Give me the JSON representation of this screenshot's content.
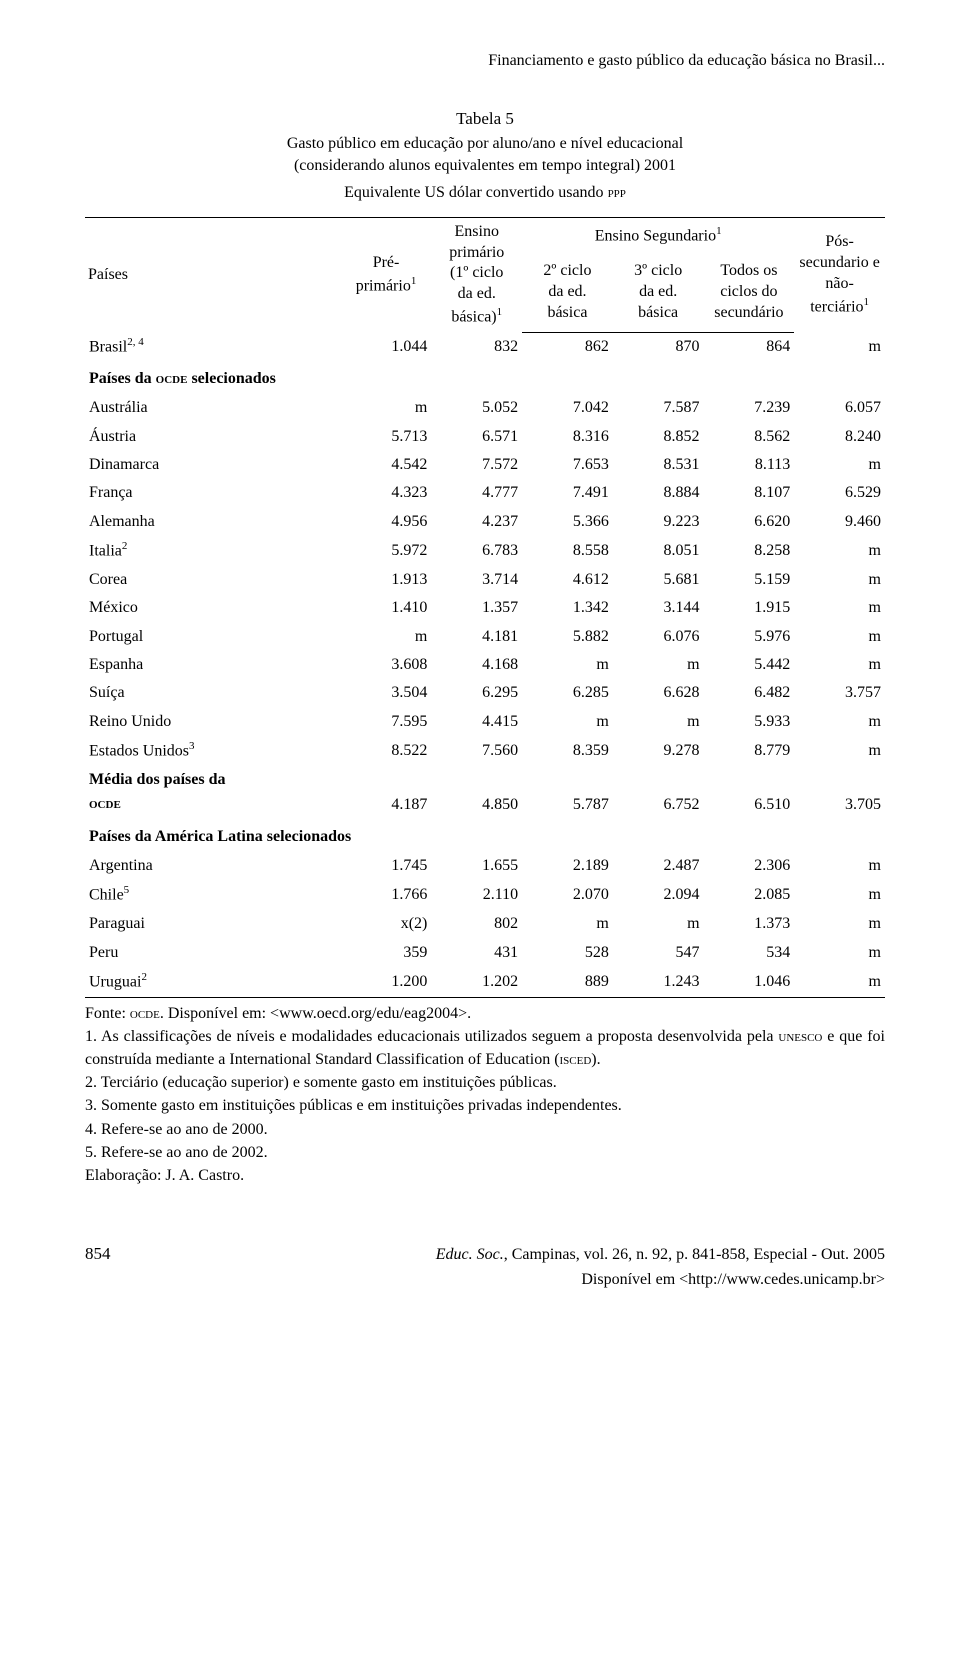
{
  "header": "Financiamento e gasto público da educação básica no Brasil...",
  "table": {
    "number": "Tabela 5",
    "title_line_1": "Gasto público em educação por aluno/ano e nível educacional",
    "title_line_2": "(considerando alunos equivalentes em tempo integral) 2001",
    "ppp_note": "Equivalente US dólar convertido usando PPP",
    "columns": {
      "c1": "Países",
      "c2": "Pré-primário¹",
      "c3": "Ensino primário (1º ciclo da ed. básica)¹",
      "group_header": "Ensino Segundario¹",
      "c4": "2º ciclo da ed. básica",
      "c5": "3º ciclo da ed. básica",
      "c6": "Todos os ciclos do secundário",
      "c7": "Pós-secundario e não-terciário¹"
    },
    "sections": [
      {
        "rows": [
          {
            "name": "Brasil",
            "sup": "2, 4",
            "values": [
              "1.044",
              "832",
              "862",
              "870",
              "864",
              "m"
            ]
          }
        ]
      },
      {
        "title": "Países da OCDE selecionados",
        "rows": [
          {
            "name": "Austrália",
            "values": [
              "m",
              "5.052",
              "7.042",
              "7.587",
              "7.239",
              "6.057"
            ]
          },
          {
            "name": "Áustria",
            "values": [
              "5.713",
              "6.571",
              "8.316",
              "8.852",
              "8.562",
              "8.240"
            ]
          },
          {
            "name": "Dinamarca",
            "values": [
              "4.542",
              "7.572",
              "7.653",
              "8.531",
              "8.113",
              "m"
            ]
          },
          {
            "name": "França",
            "values": [
              "4.323",
              "4.777",
              "7.491",
              "8.884",
              "8.107",
              "6.529"
            ]
          },
          {
            "name": "Alemanha",
            "values": [
              "4.956",
              "4.237",
              "5.366",
              "9.223",
              "6.620",
              "9.460"
            ]
          },
          {
            "name": "Italia",
            "sup": "2",
            "values": [
              "5.972",
              "6.783",
              "8.558",
              "8.051",
              "8.258",
              "m"
            ]
          },
          {
            "name": "Corea",
            "values": [
              "1.913",
              "3.714",
              "4.612",
              "5.681",
              "5.159",
              "m"
            ]
          },
          {
            "name": "México",
            "values": [
              "1.410",
              "1.357",
              "1.342",
              "3.144",
              "1.915",
              "m"
            ]
          },
          {
            "name": "Portugal",
            "values": [
              "m",
              "4.181",
              "5.882",
              "6.076",
              "5.976",
              "m"
            ]
          },
          {
            "name": "Espanha",
            "values": [
              "3.608",
              "4.168",
              "m",
              "m",
              "5.442",
              "m"
            ]
          },
          {
            "name": "Suíça",
            "values": [
              "3.504",
              "6.295",
              "6.285",
              "6.628",
              "6.482",
              "3.757"
            ]
          },
          {
            "name": "Reino Unido",
            "values": [
              "7.595",
              "4.415",
              "m",
              "m",
              "5.933",
              "m"
            ]
          },
          {
            "name": "Estados Unidos",
            "sup": "3",
            "values": [
              "8.522",
              "7.560",
              "8.359",
              "9.278",
              "8.779",
              "m"
            ]
          },
          {
            "name": "Média dos países da OCDE",
            "multiline": true,
            "name_top": "Média dos países da",
            "name_bottom": "OCDE",
            "values": [
              "4.187",
              "4.850",
              "5.787",
              "6.752",
              "6.510",
              "3.705"
            ]
          }
        ]
      },
      {
        "title": "Países da América Latina selecionados",
        "rows": [
          {
            "name": "Argentina",
            "values": [
              "1.745",
              "1.655",
              "2.189",
              "2.487",
              "2.306",
              "m"
            ]
          },
          {
            "name": "Chile",
            "sup": "5",
            "values": [
              "1.766",
              "2.110",
              "2.070",
              "2.094",
              "2.085",
              "m"
            ]
          },
          {
            "name": "Paraguai",
            "values": [
              "x(2)",
              "802",
              "m",
              "m",
              "1.373",
              "m"
            ]
          },
          {
            "name": "Peru",
            "values": [
              "359",
              "431",
              "528",
              "547",
              "534",
              "m"
            ]
          },
          {
            "name": "Uruguai",
            "sup": "2",
            "values": [
              "1.200",
              "1.202",
              "889",
              "1.243",
              "1.046",
              "m"
            ]
          }
        ]
      }
    ]
  },
  "notes": {
    "fonte": "Fonte: OCDE. Disponível em: <www.oecd.org/edu/eag2004>.",
    "n1": "1. As classificações de níveis e modalidades educacionais utilizados seguem a proposta desenvolvida pela UNESCO e que foi construída mediante a International Standard Classification of Education (ISCED).",
    "n2": "2. Terciário (educação superior) e somente gasto em instituições públicas.",
    "n3": "3. Somente gasto em instituições públicas e em instituições privadas independentes.",
    "n4": "4. Refere-se ao ano de 2000.",
    "n5": "5. Refere-se ao ano de 2002.",
    "elab": "Elaboração: J. A. Castro."
  },
  "footer": {
    "page": "854",
    "citation": "Educ. Soc., Campinas, vol. 26, n. 92, p. 841-858, Especial - Out. 2005",
    "url": "Disponível em <http://www.cedes.unicamp.br>"
  }
}
